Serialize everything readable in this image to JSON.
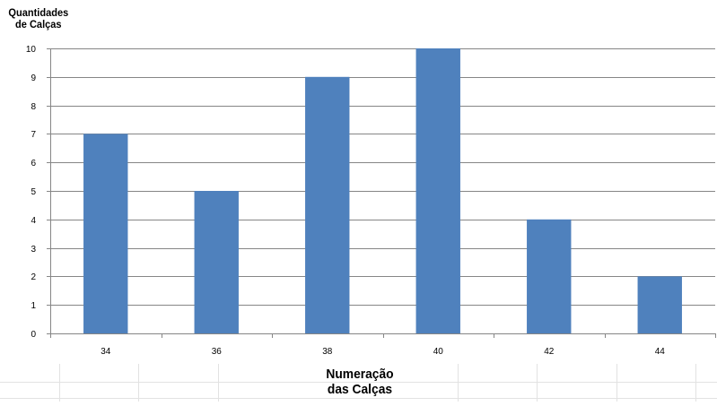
{
  "chart_data": {
    "type": "bar",
    "categories": [
      "34",
      "36",
      "38",
      "40",
      "42",
      "44"
    ],
    "values": [
      7,
      5,
      9,
      10,
      4,
      2
    ],
    "ylabel_line1": "Quantidades",
    "ylabel_line2": "de Calças",
    "xlabel_line1": "Numeração",
    "xlabel_line2": "das Calças",
    "ylim": [
      0,
      10
    ],
    "yticks": [
      "0",
      "1",
      "2",
      "3",
      "4",
      "5",
      "6",
      "7",
      "8",
      "9",
      "10"
    ],
    "grid": true,
    "bar_color": "#4f81bd"
  }
}
